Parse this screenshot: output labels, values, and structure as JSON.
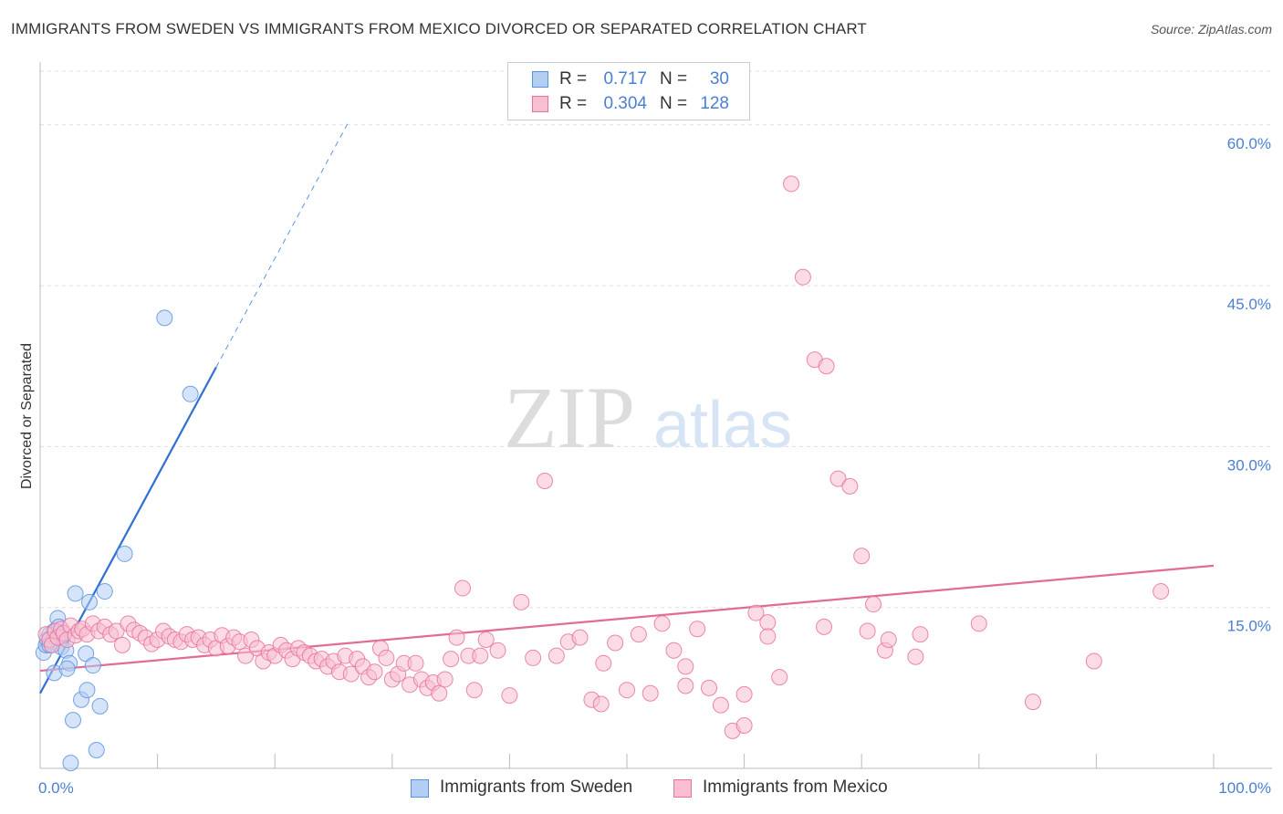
{
  "title": "IMMIGRANTS FROM SWEDEN VS IMMIGRANTS FROM MEXICO DIVORCED OR SEPARATED CORRELATION CHART",
  "source": "Source: ZipAtlas.com",
  "watermark": {
    "zip": "ZIP",
    "atlas": "atlas"
  },
  "stats": [
    {
      "r_label": "R =",
      "r_value": "0.717",
      "n_label": "N =",
      "n_value": "30",
      "color": "#5b93e0",
      "fill": "#b3cdf3"
    },
    {
      "r_label": "R =",
      "r_value": "0.304",
      "n_label": "N =",
      "n_value": "128",
      "color": "#e8729a",
      "fill": "#f7bfd1"
    }
  ],
  "legend": [
    {
      "label": "Immigrants from Sweden",
      "color": "#5b93e0",
      "fill": "#b3cdf3"
    },
    {
      "label": "Immigrants from Mexico",
      "color": "#e8729a",
      "fill": "#f7bfd1"
    }
  ],
  "chart_data": {
    "type": "scatter",
    "title": "IMMIGRANTS FROM SWEDEN VS IMMIGRANTS FROM MEXICO DIVORCED OR SEPARATED CORRELATION CHART",
    "xlabel": "",
    "ylabel": "Divorced or Separated",
    "xlim": [
      0,
      100
    ],
    "ylim": [
      0,
      65
    ],
    "x_tick_labels": [
      {
        "value": 0,
        "label": "0.0%"
      },
      {
        "value": 100,
        "label": "100.0%"
      }
    ],
    "y_ticks": [
      {
        "value": 15,
        "label": "15.0%"
      },
      {
        "value": 30,
        "label": "30.0%"
      },
      {
        "value": 45,
        "label": "45.0%"
      },
      {
        "value": 60,
        "label": "60.0%"
      }
    ],
    "grid": true,
    "series": [
      {
        "name": "Immigrants from Sweden",
        "color": "#5b93e0",
        "fill": "#b3cdf3",
        "trend": {
          "x0": 0,
          "y0": 7.0,
          "x1": 15,
          "y1": 37.4,
          "dashed_to_x": 26.2,
          "dashed_to_y": 60.1
        },
        "x": [
          0.3,
          0.5,
          0.6,
          0.8,
          1.0,
          1.2,
          1.5,
          1.6,
          1.8,
          2.0,
          2.2,
          2.5,
          2.8,
          3.0,
          3.5,
          3.9,
          4.0,
          4.2,
          4.5,
          4.8,
          5.1,
          5.5,
          7.2,
          10.6,
          12.8,
          1.2,
          2.3,
          1.7,
          0.8,
          2.6
        ],
        "y": [
          10.8,
          11.5,
          12.0,
          12.5,
          11.8,
          12.8,
          14.0,
          13.2,
          11.3,
          12.5,
          11.0,
          9.8,
          4.5,
          16.3,
          6.4,
          10.7,
          7.3,
          15.5,
          9.6,
          1.7,
          5.8,
          16.5,
          20.0,
          42.0,
          34.9,
          8.9,
          9.3,
          12.3,
          11.5,
          0.5
        ]
      },
      {
        "name": "Immigrants from Mexico",
        "color": "#e8729a",
        "fill": "#f7bfd1",
        "trend": {
          "x0": 0,
          "y0": 9.1,
          "x1": 100,
          "y1": 18.9
        },
        "x": [
          0.5,
          0.8,
          1.0,
          1.3,
          1.5,
          1.8,
          2.0,
          2.3,
          2.6,
          3.0,
          3.3,
          3.6,
          4.0,
          4.5,
          5.0,
          5.5,
          6.0,
          6.5,
          7.0,
          7.5,
          8.0,
          8.5,
          9.0,
          9.5,
          10.0,
          10.5,
          11.0,
          11.5,
          12.0,
          12.5,
          13.0,
          13.5,
          14.0,
          14.5,
          15.0,
          15.5,
          16.0,
          16.5,
          17.0,
          17.5,
          18.0,
          18.5,
          19.0,
          19.5,
          20.0,
          20.5,
          21.0,
          21.5,
          22.0,
          22.5,
          23.0,
          23.5,
          24.0,
          24.5,
          25.0,
          25.5,
          26.0,
          26.5,
          27.0,
          27.5,
          28.0,
          28.5,
          29.0,
          29.5,
          30.0,
          30.5,
          31.0,
          31.5,
          32.0,
          32.5,
          33.0,
          33.5,
          34.0,
          34.5,
          35.0,
          35.5,
          36.0,
          36.5,
          37.0,
          37.5,
          38.0,
          39.0,
          40.0,
          41.0,
          42.0,
          43.0,
          44.0,
          45.0,
          46.0,
          47.0,
          48.0,
          49.0,
          50.0,
          51.0,
          52.0,
          53.0,
          54.0,
          55.0,
          56.0,
          57.0,
          58.0,
          59.0,
          60.0,
          61.0,
          62.0,
          63.0,
          64.0,
          65.0,
          66.0,
          67.0,
          68.0,
          69.0,
          70.0,
          71.0,
          72.0,
          75.0,
          84.6,
          89.8,
          95.5,
          66.8,
          70.5,
          74.6,
          72.3,
          47.8,
          62.0,
          80.0,
          55.0,
          60.0
        ],
        "y": [
          12.5,
          12.0,
          11.5,
          12.8,
          12.2,
          13.0,
          12.6,
          12.0,
          13.3,
          12.4,
          12.8,
          13.0,
          12.5,
          13.5,
          12.8,
          13.2,
          12.5,
          12.8,
          11.5,
          13.5,
          12.9,
          12.6,
          12.2,
          11.6,
          12.0,
          12.8,
          12.3,
          12.0,
          11.8,
          12.5,
          12.0,
          12.2,
          11.5,
          12.0,
          11.2,
          12.4,
          11.4,
          12.2,
          11.8,
          10.5,
          12.0,
          11.2,
          10.0,
          10.8,
          10.5,
          11.5,
          11.0,
          10.2,
          11.2,
          10.8,
          10.5,
          10.0,
          10.2,
          9.5,
          10.0,
          9.0,
          10.5,
          8.8,
          10.2,
          9.5,
          8.5,
          9.0,
          11.2,
          10.3,
          8.3,
          8.8,
          9.8,
          7.8,
          9.8,
          8.3,
          7.5,
          8.0,
          7.0,
          8.3,
          10.2,
          12.2,
          16.8,
          10.5,
          7.3,
          10.5,
          12.0,
          11.0,
          6.8,
          15.5,
          10.3,
          26.8,
          10.5,
          11.8,
          12.2,
          6.4,
          9.8,
          11.7,
          7.3,
          12.5,
          7.0,
          13.5,
          11.0,
          9.5,
          13.0,
          7.5,
          5.9,
          3.5,
          4.0,
          14.5,
          13.6,
          8.5,
          54.5,
          45.8,
          38.1,
          37.5,
          27.0,
          26.3,
          19.8,
          15.3,
          11.0,
          12.5,
          6.2,
          10.0,
          16.5,
          13.2,
          12.8,
          10.4,
          12.0,
          6.0,
          12.3,
          13.5,
          7.7,
          6.9
        ]
      }
    ]
  }
}
